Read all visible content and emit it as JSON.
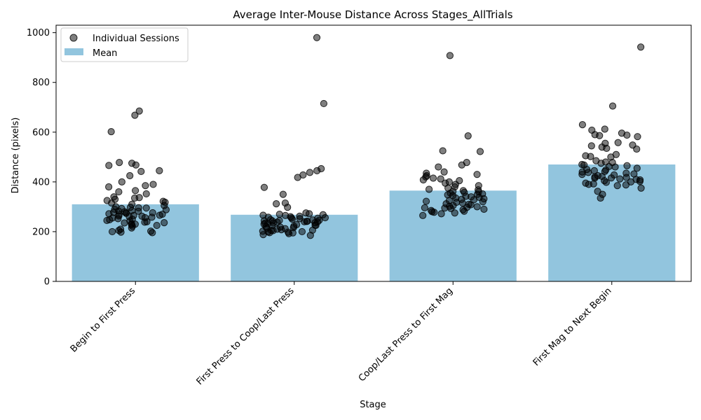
{
  "chart_data": {
    "type": "bar",
    "title": "Average Inter-Mouse Distance Across Stages_AllTrials",
    "xlabel": "Stage",
    "ylabel": "Distance (pixels)",
    "ylim": [
      0,
      1030
    ],
    "yticks": [
      0,
      200,
      400,
      600,
      800,
      1000
    ],
    "categories": [
      "Begin to First Press",
      "First Press to Coop/Last Press",
      "Coop/Last Press to First Mag",
      "First Mag to Next Begin"
    ],
    "legend": {
      "placement": "top-left",
      "entries": [
        "Individual Sessions",
        "Mean"
      ]
    },
    "colors": {
      "bar": "#92c5de",
      "point_fill": "#000000",
      "point_opacity": 0.5,
      "axis": "#000000"
    },
    "series": [
      {
        "name": "Mean",
        "values": [
          310,
          268,
          365,
          470
        ]
      }
    ],
    "points": [
      {
        "category": "Begin to First Press",
        "values": [
          668,
          685,
          602,
          478,
          475,
          468,
          466,
          445,
          442,
          425,
          400,
          390,
          385,
          380,
          365,
          360,
          352,
          340,
          337,
          335,
          330,
          325,
          322,
          318,
          315,
          310,
          305,
          300,
          298,
          296,
          295,
          293,
          290,
          288,
          285,
          283,
          282,
          280,
          278,
          276,
          275,
          274,
          272,
          270,
          268,
          266,
          265,
          263,
          262,
          260,
          258,
          256,
          255,
          252,
          250,
          248,
          245,
          243,
          240,
          238,
          236,
          235,
          232,
          230,
          228,
          225,
          222,
          215,
          210,
          205,
          202,
          200,
          198,
          196
        ]
      },
      {
        "category": "First Press to Coop/Last Press",
        "values": [
          980,
          715,
          453,
          445,
          438,
          428,
          418,
          378,
          350,
          315,
          312,
          298,
          275,
          272,
          270,
          268,
          266,
          265,
          262,
          260,
          258,
          256,
          255,
          254,
          252,
          250,
          248,
          247,
          246,
          245,
          244,
          243,
          242,
          241,
          240,
          239,
          238,
          236,
          235,
          234,
          232,
          230,
          228,
          226,
          225,
          224,
          222,
          220,
          218,
          216,
          214,
          212,
          210,
          208,
          206,
          205,
          204,
          202,
          200,
          199,
          198,
          196,
          195,
          192,
          188,
          185
        ]
      },
      {
        "category": "Coop/Last Press to First Mag",
        "values": [
          908,
          585,
          525,
          522,
          478,
          468,
          460,
          440,
          435,
          430,
          425,
          420,
          415,
          412,
          408,
          405,
          400,
          395,
          390,
          385,
          380,
          375,
          370,
          368,
          365,
          362,
          360,
          358,
          355,
          352,
          350,
          348,
          345,
          342,
          340,
          338,
          335,
          332,
          330,
          328,
          325,
          322,
          320,
          318,
          315,
          312,
          310,
          308,
          305,
          302,
          300,
          298,
          296,
          295,
          293,
          290,
          288,
          285,
          282,
          280,
          278,
          275,
          272,
          265
        ]
      },
      {
        "category": "First Mag to Next Begin",
        "values": [
          942,
          705,
          630,
          612,
          608,
          596,
          590,
          588,
          586,
          582,
          558,
          555,
          548,
          545,
          540,
          535,
          532,
          510,
          505,
          502,
          500,
          485,
          480,
          478,
          475,
          470,
          468,
          465,
          462,
          460,
          455,
          450,
          448,
          445,
          442,
          440,
          438,
          435,
          432,
          430,
          428,
          425,
          422,
          420,
          418,
          416,
          415,
          412,
          410,
          408,
          405,
          402,
          400,
          398,
          395,
          392,
          390,
          388,
          385,
          375,
          362,
          350,
          335
        ]
      }
    ]
  }
}
